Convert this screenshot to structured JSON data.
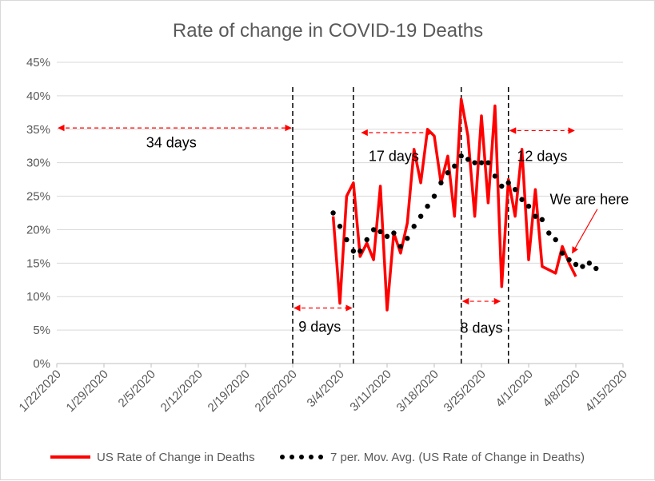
{
  "chart_data": {
    "type": "line",
    "title": "Rate of change in COVID-19 Deaths",
    "xlabel": "",
    "ylabel": "",
    "ylim": [
      0,
      0.45
    ],
    "y_ticks": [
      0,
      0.05,
      0.1,
      0.15,
      0.2,
      0.25,
      0.3,
      0.35,
      0.4,
      0.45
    ],
    "y_tick_labels": [
      "0%",
      "5%",
      "10%",
      "15%",
      "20%",
      "25%",
      "30%",
      "35%",
      "40%",
      "45%"
    ],
    "x_range": [
      "1/22/2020",
      "4/15/2020"
    ],
    "x_tick_labels": [
      "1/22/2020",
      "1/29/2020",
      "2/5/2020",
      "2/12/2020",
      "2/19/2020",
      "2/26/2020",
      "3/4/2020",
      "3/11/2020",
      "3/18/2020",
      "3/25/2020",
      "4/1/2020",
      "4/8/2020",
      "4/15/2020"
    ],
    "grid": true,
    "legend_position": "bottom",
    "series": [
      {
        "name": "US Rate of Change in Deaths",
        "style": "solid",
        "color": "#ff0000",
        "x": [
          "3/3/2020",
          "3/4/2020",
          "3/5/2020",
          "3/6/2020",
          "3/7/2020",
          "3/8/2020",
          "3/9/2020",
          "3/10/2020",
          "3/11/2020",
          "3/12/2020",
          "3/13/2020",
          "3/14/2020",
          "3/15/2020",
          "3/16/2020",
          "3/17/2020",
          "3/18/2020",
          "3/19/2020",
          "3/20/2020",
          "3/21/2020",
          "3/22/2020",
          "3/23/2020",
          "3/24/2020",
          "3/25/2020",
          "3/26/2020",
          "3/27/2020",
          "3/28/2020",
          "3/29/2020",
          "3/30/2020",
          "3/31/2020",
          "4/1/2020",
          "4/2/2020",
          "4/3/2020",
          "4/4/2020",
          "4/5/2020",
          "4/6/2020",
          "4/7/2020",
          "4/8/2020",
          "4/9/2020",
          "4/10/2020",
          "4/11/2020"
        ],
        "values": [
          0.22,
          0.09,
          0.25,
          0.27,
          0.16,
          0.18,
          0.155,
          0.265,
          0.08,
          0.195,
          0.165,
          0.21,
          0.32,
          0.27,
          0.35,
          0.34,
          0.27,
          0.31,
          0.22,
          0.395,
          0.34,
          0.22,
          0.37,
          0.24,
          0.385,
          0.115,
          0.275,
          0.22,
          0.32,
          0.155,
          0.26,
          0.145,
          0.14,
          0.135,
          0.175,
          0.15,
          0.13,
          null,
          null,
          null
        ]
      },
      {
        "name": "7 per. Mov. Avg. (US Rate of Change in Deaths)",
        "style": "dotted",
        "color": "#000000",
        "x": [
          "3/3/2020",
          "3/4/2020",
          "3/5/2020",
          "3/6/2020",
          "3/7/2020",
          "3/8/2020",
          "3/9/2020",
          "3/10/2020",
          "3/11/2020",
          "3/12/2020",
          "3/13/2020",
          "3/14/2020",
          "3/15/2020",
          "3/16/2020",
          "3/17/2020",
          "3/18/2020",
          "3/19/2020",
          "3/20/2020",
          "3/21/2020",
          "3/22/2020",
          "3/23/2020",
          "3/24/2020",
          "3/25/2020",
          "3/26/2020",
          "3/27/2020",
          "3/28/2020",
          "3/29/2020",
          "3/30/2020",
          "3/31/2020",
          "4/1/2020",
          "4/2/2020",
          "4/3/2020",
          "4/4/2020",
          "4/5/2020",
          "4/6/2020",
          "4/7/2020",
          "4/8/2020",
          "4/9/2020",
          "4/10/2020",
          "4/11/2020"
        ],
        "values": [
          0.225,
          0.205,
          0.185,
          0.168,
          0.168,
          0.185,
          0.2,
          0.197,
          0.19,
          0.195,
          0.175,
          0.187,
          0.205,
          0.22,
          0.235,
          0.25,
          0.27,
          0.285,
          0.295,
          0.31,
          0.305,
          0.3,
          0.3,
          0.3,
          0.28,
          0.265,
          0.27,
          0.26,
          0.245,
          0.235,
          0.22,
          0.215,
          0.195,
          0.185,
          0.165,
          0.155,
          0.148,
          0.145,
          0.15,
          0.142
        ]
      }
    ],
    "annotations": [
      {
        "text": "34 days",
        "from": "1/22/2020",
        "to": "2/26/2020",
        "y": 0.352,
        "label_x": "2/8/2020",
        "label_y": 0.33
      },
      {
        "text": "9 days",
        "from": "2/26/2020",
        "to": "3/6/2020",
        "y": 0.083,
        "label_x": "3/1/2020",
        "label_y": 0.055
      },
      {
        "text": "17 days",
        "from": "3/7/2020",
        "to": "3/18/2020",
        "y": 0.345,
        "label_x": "3/12/2020",
        "label_y": 0.31
      },
      {
        "text": "8 days",
        "from": "3/22/2020",
        "to": "3/28/2020",
        "y": 0.093,
        "label_x": "3/25/2020",
        "label_y": 0.053
      },
      {
        "text": "12 days",
        "from": "3/29/2020",
        "to": "4/8/2020",
        "y": 0.348,
        "label_x": "4/3/2020",
        "label_y": 0.31
      },
      {
        "text": "We are here",
        "label_x": "4/10/2020",
        "label_y": 0.245
      }
    ],
    "vertical_markers": [
      "2/26/2020",
      "3/6/2020",
      "3/22/2020",
      "3/29/2020"
    ]
  }
}
